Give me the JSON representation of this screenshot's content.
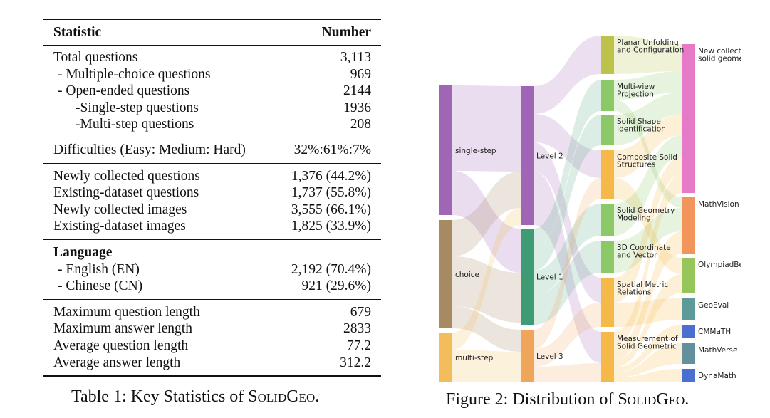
{
  "table": {
    "header": {
      "statistic": "Statistic",
      "number": "Number"
    },
    "sections": [
      [
        {
          "label": "Total questions",
          "value": "3,113"
        },
        {
          "label": "- Multiple-choice questions",
          "value": "969"
        },
        {
          "label": "- Open-ended questions",
          "value": "2144"
        },
        {
          "label": "-Single-step questions",
          "value": "1936"
        },
        {
          "label": "-Multi-step questions",
          "value": "208"
        }
      ],
      [
        {
          "label": "Difficulties (Easy: Medium: Hard)",
          "value": "32%:61%:7%"
        }
      ],
      [
        {
          "label": "Newly collected questions",
          "value": "1,376 (44.2%)"
        },
        {
          "label": "Existing-dataset questions",
          "value": "1,737 (55.8%)"
        },
        {
          "label": "Newly collected images",
          "value": "3,555 (66.1%)"
        },
        {
          "label": "Existing-dataset images",
          "value": "1,825 (33.9%)"
        }
      ],
      [
        {
          "label": "Language",
          "value": ""
        },
        {
          "label": "- English (EN)",
          "value": "2,192 (70.4%)"
        },
        {
          "label": "- Chinese (CN)",
          "value": "921 (29.6%)"
        }
      ],
      [
        {
          "label": "Maximum question length",
          "value": "679"
        },
        {
          "label": "Maximum answer length",
          "value": "2833"
        },
        {
          "label": "Average question length",
          "value": "77.2"
        },
        {
          "label": "Average answer length",
          "value": "312.2"
        }
      ]
    ],
    "caption_prefix": "Table 1: Key Statistics of ",
    "caption_name": "SolidGeo",
    "caption_suffix": "."
  },
  "figure": {
    "caption_prefix": "Figure 2: Distribution of ",
    "caption_name": "SolidGeo",
    "caption_suffix": ".",
    "question_types": [
      {
        "label": "single-step",
        "color": "#a066b5"
      },
      {
        "label": "choice",
        "color": "#a88a62"
      },
      {
        "label": "multi-step",
        "color": "#f3bd5b"
      }
    ],
    "levels": [
      {
        "label": "Level 2",
        "color": "#a066b5"
      },
      {
        "label": "Level 1",
        "color": "#3f9b73"
      },
      {
        "label": "Level 3",
        "color": "#f0a65a"
      }
    ],
    "categories": [
      {
        "label": "Planar Unfolding and Configuration",
        "lines": [
          "Planar Unfolding",
          "and Configuration"
        ],
        "color": "#bcc24a"
      },
      {
        "label": "Multi-view Projection",
        "lines": [
          "Multi-view",
          "Projection"
        ],
        "color": "#8cc868"
      },
      {
        "label": "Solid Shape Identification",
        "lines": [
          "Solid Shape",
          "Identification"
        ],
        "color": "#8cc868"
      },
      {
        "label": "Composite Solid Structures",
        "lines": [
          "Composite Solid",
          "Structures"
        ],
        "color": "#f5b94a"
      },
      {
        "label": "Solid Geometry Modeling",
        "lines": [
          "Solid Geometry",
          "Modeling"
        ],
        "color": "#8cc868"
      },
      {
        "label": "3D Coordinate and Vector",
        "lines": [
          "3D Coordinate",
          "and Vector"
        ],
        "color": "#8cc868"
      },
      {
        "label": "Spatial Metric Relations",
        "lines": [
          "Spatial Metric",
          "Relations"
        ],
        "color": "#f5b94a"
      },
      {
        "label": "Measurement of Solid Geometric",
        "lines": [
          "Measurement of",
          "Solid Geometric"
        ],
        "color": "#f5b94a"
      }
    ],
    "sources": [
      {
        "label": "New collected solid geometry",
        "lines": [
          "New collected",
          "solid geometry"
        ],
        "color": "#e67ac9"
      },
      {
        "label": "MathVision",
        "lines": [
          "MathVision"
        ],
        "color": "#f2955a"
      },
      {
        "label": "OlympiadBench",
        "lines": [
          "OlympiadBench"
        ],
        "color": "#96c65a"
      },
      {
        "label": "GeoEval",
        "lines": [
          "GeoEval"
        ],
        "color": "#5d9a9a"
      },
      {
        "label": "CMMaTH",
        "lines": [
          "CMMaTH"
        ],
        "color": "#4b6fd0"
      },
      {
        "label": "MathVerse",
        "lines": [
          "MathVerse"
        ],
        "color": "#64909e"
      },
      {
        "label": "DynaMath",
        "lines": [
          "DynaMath"
        ],
        "color": "#4b6fd0"
      }
    ]
  }
}
